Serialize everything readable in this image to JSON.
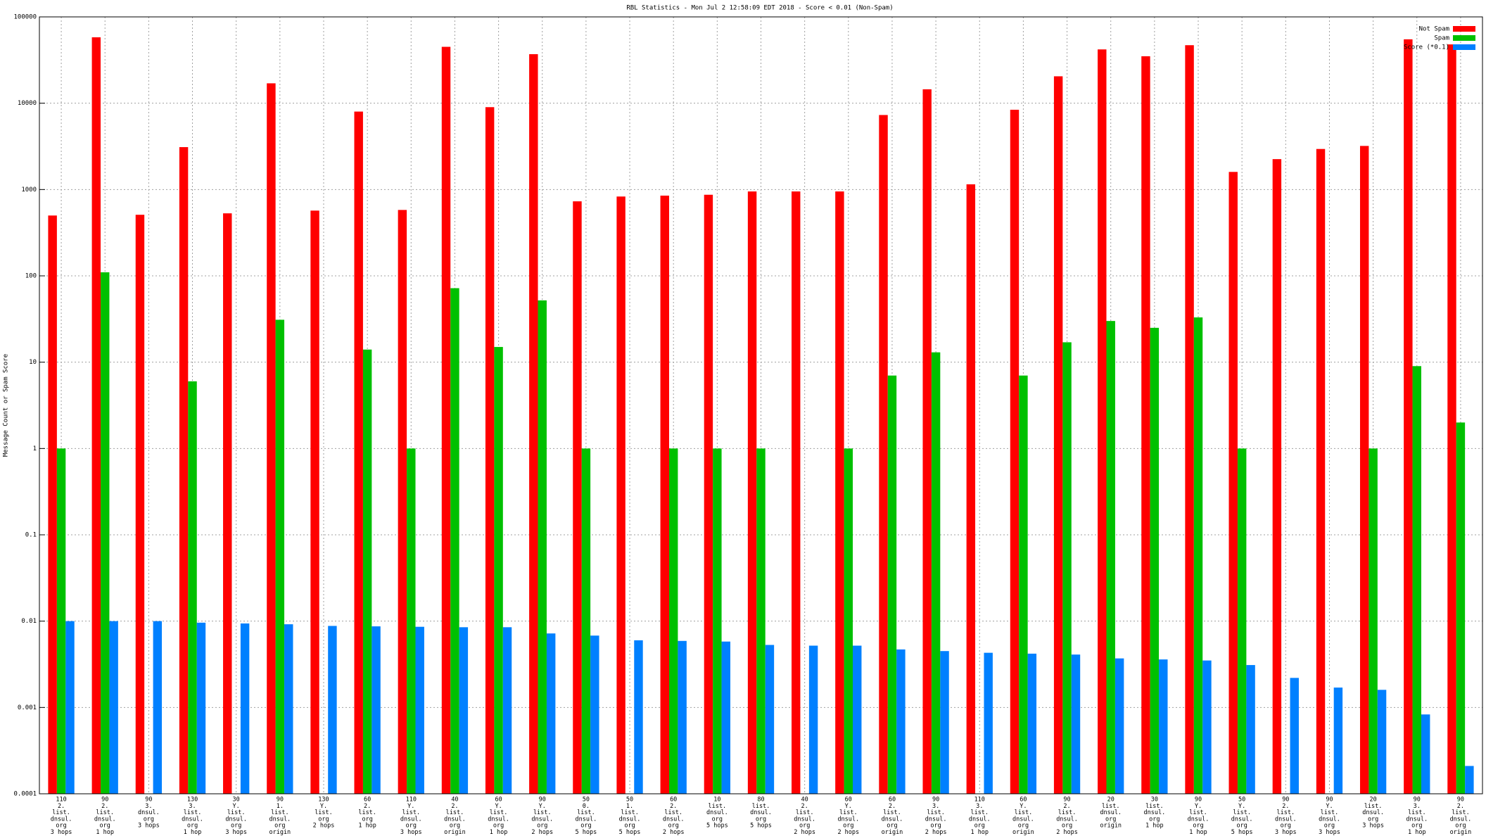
{
  "chart_data": {
    "type": "bar",
    "title": "RBL Statistics - Mon Jul  2 12:58:09 EDT 2018 - Score < 0.01 (Non-Spam)",
    "y_label": "Message Count or Spam Score",
    "log_scale": true,
    "grid": true,
    "legend": "top-right",
    "ylim": [
      0.0001,
      100000
    ],
    "yticks": [
      0.0001,
      0.001,
      0.01,
      0.1,
      1,
      10,
      100,
      1000,
      10000,
      100000
    ],
    "categories": [
      [
        "110",
        "2.",
        "list.",
        "dnsul.",
        "org",
        "3 hops"
      ],
      [
        "90",
        "2.",
        "list.",
        "dnsul.",
        "org",
        "1 hop"
      ],
      [
        "90",
        "3.",
        "dnsul.",
        "org",
        "3 hops"
      ],
      [
        "130",
        "3.",
        "list.",
        "dnsul.",
        "org",
        "1 hop"
      ],
      [
        "30",
        "Y.",
        "list.",
        "dnsul.",
        "org",
        "3 hops"
      ],
      [
        "90",
        "1.",
        "list.",
        "dnsul.",
        "org",
        "origin"
      ],
      [
        "130",
        "Y.",
        "list.",
        "org",
        "2 hops"
      ],
      [
        "60",
        "2.",
        "list.",
        "org",
        "1 hop"
      ],
      [
        "110",
        "Y.",
        "list.",
        "dnsul.",
        "org",
        "3 hops"
      ],
      [
        "40",
        "2.",
        "list.",
        "dnsul.",
        "org",
        "origin"
      ],
      [
        "60",
        "Y.",
        "list.",
        "dnsul.",
        "org",
        "1 hop"
      ],
      [
        "90",
        "Y.",
        "list.",
        "dnsul.",
        "org",
        "2 hops"
      ],
      [
        "50",
        "0.",
        "list.",
        "dnsul.",
        "org",
        "5 hops"
      ],
      [
        "50",
        "1.",
        "list.",
        "dnsul.",
        "org",
        "5 hops"
      ],
      [
        "60",
        "2.",
        "list.",
        "dnsul.",
        "org",
        "2 hops"
      ],
      [
        "10",
        "list.",
        "dnsul.",
        "org",
        "5 hops"
      ],
      [
        "80",
        "list.",
        "dnsul.",
        "org",
        "5 hops"
      ],
      [
        "40",
        "2.",
        "list.",
        "dnsul.",
        "org",
        "2 hops"
      ],
      [
        "60",
        "Y.",
        "list.",
        "dnsul.",
        "org",
        "2 hops"
      ],
      [
        "60",
        "2.",
        "list.",
        "dnsul.",
        "org",
        "origin"
      ],
      [
        "90",
        "3.",
        "list.",
        "dnsul.",
        "org",
        "2 hops"
      ],
      [
        "110",
        "3.",
        "list.",
        "dnsul.",
        "org",
        "1 hop"
      ],
      [
        "60",
        "Y.",
        "list.",
        "dnsul.",
        "org",
        "origin"
      ],
      [
        "90",
        "2.",
        "list.",
        "dnsul.",
        "org",
        "2 hops"
      ],
      [
        "20",
        "list.",
        "dnsul.",
        "org",
        "origin"
      ],
      [
        "30",
        "list.",
        "dnsul.",
        "org",
        "1 hop"
      ],
      [
        "90",
        "Y.",
        "list.",
        "dnsul.",
        "org",
        "1 hop"
      ],
      [
        "50",
        "Y.",
        "list.",
        "dnsul.",
        "org",
        "5 hops"
      ],
      [
        "90",
        "2.",
        "list.",
        "dnsul.",
        "org",
        "3 hops"
      ],
      [
        "90",
        "Y.",
        "list.",
        "dnsul.",
        "org",
        "3 hops"
      ],
      [
        "20",
        "list.",
        "dnsul.",
        "org",
        "3 hops"
      ],
      [
        "90",
        "3.",
        "list.",
        "dnsul.",
        "org",
        "1 hop"
      ],
      [
        "90",
        "2.",
        "list.",
        "dnsul.",
        "org",
        "origin"
      ]
    ],
    "series": [
      {
        "name": "Not Spam",
        "color": "#ff0000",
        "values": [
          500,
          58000,
          510,
          3100,
          530,
          17000,
          570,
          8000,
          580,
          45000,
          9000,
          37000,
          730,
          830,
          850,
          870,
          950,
          950,
          950,
          7300,
          14500,
          1150,
          8400,
          20500,
          42000,
          35000,
          47000,
          1600,
          2250,
          2950,
          3200,
          55000,
          48000
        ]
      },
      {
        "name": "Spam",
        "color": "#00c000",
        "values": [
          1,
          110,
          null,
          6,
          null,
          31,
          null,
          14,
          1,
          72,
          15,
          52,
          1,
          null,
          1,
          1,
          1,
          null,
          1,
          7,
          13,
          null,
          7,
          17,
          30,
          25,
          33,
          1,
          null,
          null,
          1,
          9,
          2
        ]
      },
      {
        "name": "Score (*0.1)",
        "color": "#0080ff",
        "values": [
          0.01,
          0.01,
          0.01,
          0.0096,
          0.0094,
          0.0092,
          0.0088,
          0.0087,
          0.0086,
          0.0085,
          0.0085,
          0.0072,
          0.0068,
          0.006,
          0.0059,
          0.0058,
          0.0053,
          0.0052,
          0.0052,
          0.0047,
          0.0045,
          0.0043,
          0.0042,
          0.0041,
          0.0037,
          0.0036,
          0.0035,
          0.0031,
          0.0022,
          0.0017,
          0.0016,
          0.00083,
          0.00021
        ]
      }
    ]
  }
}
